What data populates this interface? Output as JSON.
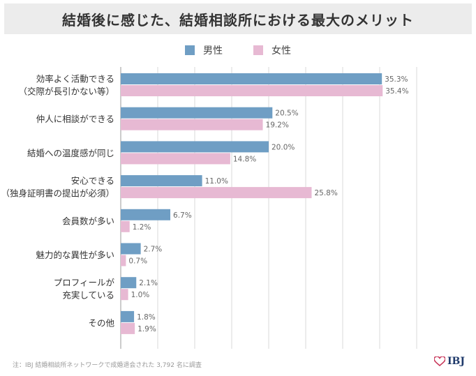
{
  "title": "結婚後に感じた、結婚相談所における最大のメリット",
  "colors": {
    "male": "#6f9ec4",
    "female": "#e7b9d3",
    "grid": "#d9d9d9",
    "axis": "#999999",
    "label": "#333333",
    "value": "#666666",
    "logo_heart": "#c8375a"
  },
  "footnote": "注：IBJ 結婚相談所ネットワークで成婚退会された 3,792 名に調査",
  "logo": {
    "icon": "heart-icon",
    "text": "IBJ"
  },
  "chart_data": {
    "type": "bar",
    "orientation": "horizontal",
    "title": "結婚後に感じた、結婚相談所における最大のメリット",
    "xlim": [
      0,
      40
    ],
    "grid": true,
    "legend": "top-center",
    "categories": [
      [
        "効率よく活動できる",
        "（交際が長引かない等）"
      ],
      [
        "仲人に相談ができる"
      ],
      [
        "結婚への温度感が同じ"
      ],
      [
        "安心できる",
        "（独身証明書の提出が必須）"
      ],
      [
        "会員数が多い"
      ],
      [
        "魅力的な異性が多い"
      ],
      [
        "プロフィールが",
        "充実している"
      ],
      [
        "その他"
      ]
    ],
    "series": [
      {
        "name": "男性",
        "values": [
          35.3,
          20.5,
          20.0,
          11.0,
          6.7,
          2.7,
          2.1,
          1.8
        ],
        "labels": [
          "35.3%",
          "20.5%",
          "20.0%",
          "11.0%",
          "6.7%",
          "2.7%",
          "2.1%",
          "1.8%"
        ]
      },
      {
        "name": "女性",
        "values": [
          35.4,
          19.2,
          14.8,
          25.8,
          1.2,
          0.7,
          1.0,
          1.9
        ],
        "labels": [
          "35.4%",
          "19.2%",
          "14.8%",
          "25.8%",
          "1.2%",
          "0.7%",
          "1.0%",
          "1.9%"
        ]
      }
    ]
  }
}
